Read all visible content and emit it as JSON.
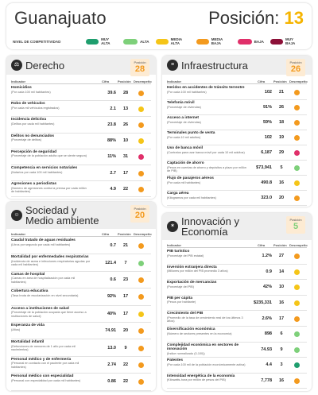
{
  "header": {
    "state": "Guanajuato",
    "position_label": "Posición:",
    "position_value": "13",
    "legend_title": "NIVEL DE COMPETITIVIDAD",
    "legend": [
      {
        "label": "MUY ALTA",
        "color": "#1f9e6e"
      },
      {
        "label": "ALTA",
        "color": "#7ed07a"
      },
      {
        "label": "MEDIA ALTA",
        "color": "#f5c518"
      },
      {
        "label": "MEDIA BAJA",
        "color": "#f39a1e"
      },
      {
        "label": "BAJA",
        "color": "#e0306a"
      },
      {
        "label": "MUY BAJA",
        "color": "#8c1038"
      }
    ]
  },
  "columns": {
    "indicator": "Indicador",
    "value": "Cifra",
    "position": "Posición",
    "performance": "Desempeño"
  },
  "sections": [
    {
      "id": "derecho",
      "icon": "scale-icon",
      "title": [
        "Derecho"
      ],
      "pos_label": "Posición",
      "position": "28",
      "pos_color": "#f39a1e",
      "rows": [
        {
          "name": "Homicidios",
          "desc": "(Por cada 100 mil habitantes)",
          "value": "39.6",
          "position": "28",
          "color": "#f39a1e"
        },
        {
          "name": "Robo de vehículos",
          "desc": "(Por cada mil vehículos registrados)",
          "value": "2.1",
          "position": "13",
          "color": "#f5c518"
        },
        {
          "name": "Incidencia delictiva",
          "desc": "(Delitos por cada mil habitantes)",
          "value": "23.8",
          "position": "26",
          "color": "#f39a1e"
        },
        {
          "name": "Delitos no denunciados",
          "desc": "(Porcentaje de delitos)",
          "value": "88%",
          "value_raw": "88%",
          "position": "10",
          "color": "#f5c518"
        },
        {
          "name": "Percepción de seguridad",
          "desc": "(Porcentaje de la población adulta que se siente segura)",
          "value": "11%",
          "position": "31",
          "color": "#e0306a"
        },
        {
          "name": "Competencia en servicios notariales",
          "desc": "(Notarios por cada 100 mil habitantes)",
          "value": "2.7",
          "position": "17",
          "color": "#f39a1e"
        },
        {
          "name": "Agresiones a periodistas",
          "desc": "(Número de agresiones contra la prensa por cada millón de habitantes)",
          "value": "4.9",
          "position": "22",
          "color": "#f39a1e"
        }
      ]
    },
    {
      "id": "infraestructura",
      "icon": "road-icon",
      "title": [
        "Infraestructura"
      ],
      "pos_label": "Posición",
      "position": "26",
      "pos_color": "#f39a1e",
      "rows": [
        {
          "name": "Heridos en accidentes de tránsito terrestre",
          "desc": "(Por cada 100 mil habitantes)",
          "value": "102",
          "position": "21",
          "color": "#f39a1e"
        },
        {
          "name": "Telefonía móvil",
          "desc": "(Porcentaje de viviendas)",
          "value": "91%",
          "position": "26",
          "color": "#f39a1e"
        },
        {
          "name": "Acceso a internet",
          "desc": "(Porcentaje de viviendas)",
          "value": "59%",
          "position": "18",
          "color": "#f39a1e"
        },
        {
          "name": "Terminales punto de venta",
          "desc": "(Por cada 10 mil adultos)",
          "value": "102",
          "position": "19",
          "color": "#f39a1e"
        },
        {
          "name": "Uso de banca móvil",
          "desc": "(Contratos para usar banca móvil por cada 10 mil adultos)",
          "value": "6,187",
          "position": "29",
          "color": "#e0306a"
        },
        {
          "name": "Captación de ahorro",
          "desc": "(Pesos en cuentas de ahorro y depósitos a plazo por millón de PIB)",
          "value": "$73,941",
          "position": "5",
          "color": "#7ed07a"
        },
        {
          "name": "Flujo de pasajeros aéreos",
          "desc": "(Por cada mil habitantes)",
          "value": "490.8",
          "position": "16",
          "color": "#f5c518"
        },
        {
          "name": "Carga aérea",
          "desc": "(Kilogramos por cada mil habitantes)",
          "value": "323.0",
          "position": "20",
          "color": "#f39a1e"
        }
      ]
    },
    {
      "id": "sociedad",
      "icon": "people-icon",
      "title": [
        "Sociedad y",
        "Medio ambiente"
      ],
      "pos_label": "Posición",
      "position": "20",
      "pos_color": "#f39a1e",
      "rows": [
        {
          "name": "Caudal tratado de aguas residuales",
          "desc": "(Litros por segundo por cada mil habitantes)",
          "value": "0.7",
          "position": "21",
          "color": "#f39a1e"
        },
        {
          "name": "Mortalidad por enfermedades respiratorias",
          "desc": "(Incidencia de asma e infecciones respiratorias agudas por cada mil habitantes)",
          "value": "121.4",
          "position": "7",
          "color": "#7ed07a"
        },
        {
          "name": "Camas de hospital",
          "desc": "(Camas en área de hospitalización por cada mil habitantes)",
          "value": "0.6",
          "position": "23",
          "color": "#f39a1e"
        },
        {
          "name": "Cobertura educativa",
          "desc": "(Tasa bruta de escolarización en nivel secundaria)",
          "value": "92%",
          "position": "17",
          "color": "#f39a1e"
        },
        {
          "name": "Acceso a instituciones de salud",
          "desc": "(Porcentaje de la población ocupada que tiene acceso a instituciones de salud)",
          "value": "40%",
          "position": "17",
          "color": "#f5c518"
        },
        {
          "name": "Esperanza de vida",
          "desc": "(Años)",
          "value": "74.91",
          "position": "20",
          "color": "#f39a1e"
        },
        {
          "name": "Mortalidad infantil",
          "desc": "(Defunciones de menores de 1 año por cada mil nacimientos)",
          "value": "13.0",
          "position": "9",
          "color": "#f39a1e"
        },
        {
          "name": "Personal médico y de enfermería",
          "desc": "(Personal en contacto con el paciente por cada mil habitantes)",
          "value": "2.74",
          "position": "22",
          "color": "#f39a1e"
        },
        {
          "name": "Personal médico con especialidad",
          "desc": "(Personal con especialidad por cada mil habitantes)",
          "value": "0.86",
          "position": "22",
          "color": "#f39a1e"
        }
      ]
    },
    {
      "id": "innovacion",
      "icon": "lightbulb-icon",
      "title": [
        "Innovación y",
        "Economía"
      ],
      "pos_label": "Posición",
      "position": "5",
      "pos_color": "#7ed07a",
      "rows": [
        {
          "name": "PIB turístico",
          "desc": "(Porcentaje del PIB estatal)",
          "value": "1.2%",
          "position": "27",
          "color": "#f39a1e"
        },
        {
          "name": "Inversión extranjera directa",
          "desc": "(Millones por millón del PIB promedio 3 años)",
          "value": "0.9",
          "position": "14",
          "color": "#f5c518"
        },
        {
          "name": "Exportación de mercancías",
          "desc": "(Porcentaje del PIB)",
          "value": "42%",
          "position": "10",
          "color": "#f5c518"
        },
        {
          "name": "PIB per cápita",
          "desc": "(Pesos por habitante)",
          "value": "$235,331",
          "position": "16",
          "color": "#f5c518"
        },
        {
          "name": "Crecimiento del PIB",
          "desc": "(Promedio de la tasa de crecimiento real de los últimos 3 años)",
          "value": "2.6%",
          "position": "17",
          "color": "#f39a1e"
        },
        {
          "name": "Diversificación económica",
          "desc": "(Número de sectores presentes en la economía)",
          "value": "898",
          "position": "6",
          "color": "#7ed07a"
        },
        {
          "name": "Complejidad económica en sectores de innovación",
          "desc": "(Índice normalizado (0-100))",
          "value": "74.93",
          "position": "9",
          "color": "#7ed07a"
        },
        {
          "name": "Patentes",
          "desc": "(Por cada 100 mil de la población económicamente activa)",
          "value": "4.4",
          "position": "3",
          "color": "#1f9e6e"
        },
        {
          "name": "Intensidad energética de la economía",
          "desc": "(Kilowatts-hora por millón de pesos del PIB)",
          "value": "7,778",
          "position": "16",
          "color": "#f39a1e"
        }
      ]
    }
  ]
}
